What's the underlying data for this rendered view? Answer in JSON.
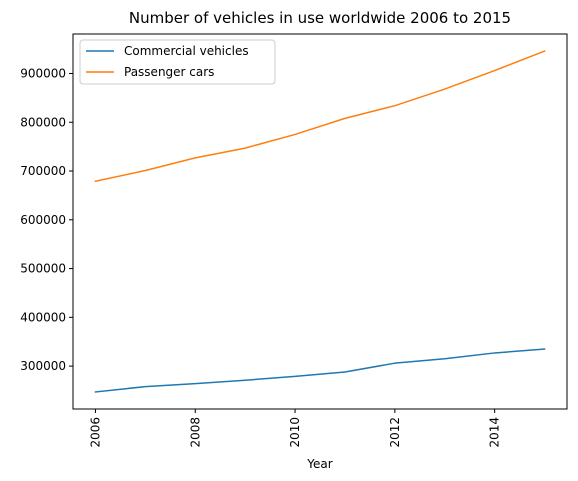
{
  "chart_data": {
    "type": "line",
    "title": "Number of vehicles in use worldwide 2006 to 2015",
    "xlabel": "Year",
    "ylabel": "",
    "x": [
      2006,
      2007,
      2008,
      2009,
      2010,
      2011,
      2012,
      2013,
      2014,
      2015
    ],
    "series": [
      {
        "name": "Commercial vehicles",
        "color": "#1f77b4",
        "values": [
          247000,
          258000,
          264000,
          271000,
          279000,
          288000,
          306000,
          315000,
          327000,
          335000
        ]
      },
      {
        "name": "Passenger cars",
        "color": "#ff7f0e",
        "values": [
          679000,
          701000,
          727000,
          747000,
          775000,
          808000,
          834000,
          868000,
          906000,
          946000
        ]
      }
    ],
    "xlim": [
      2005.55,
      2015.45
    ],
    "ylim": [
      212050,
      980950
    ],
    "xticks": [
      2006,
      2008,
      2010,
      2012,
      2014
    ],
    "xtick_labels": [
      "2006",
      "2008",
      "2010",
      "2012",
      "2014"
    ],
    "yticks": [
      300000,
      400000,
      500000,
      600000,
      700000,
      800000,
      900000
    ],
    "ytick_labels": [
      "300000",
      "400000",
      "500000",
      "600000",
      "700000",
      "800000",
      "900000"
    ],
    "grid": false,
    "legend_position": "top-left"
  }
}
